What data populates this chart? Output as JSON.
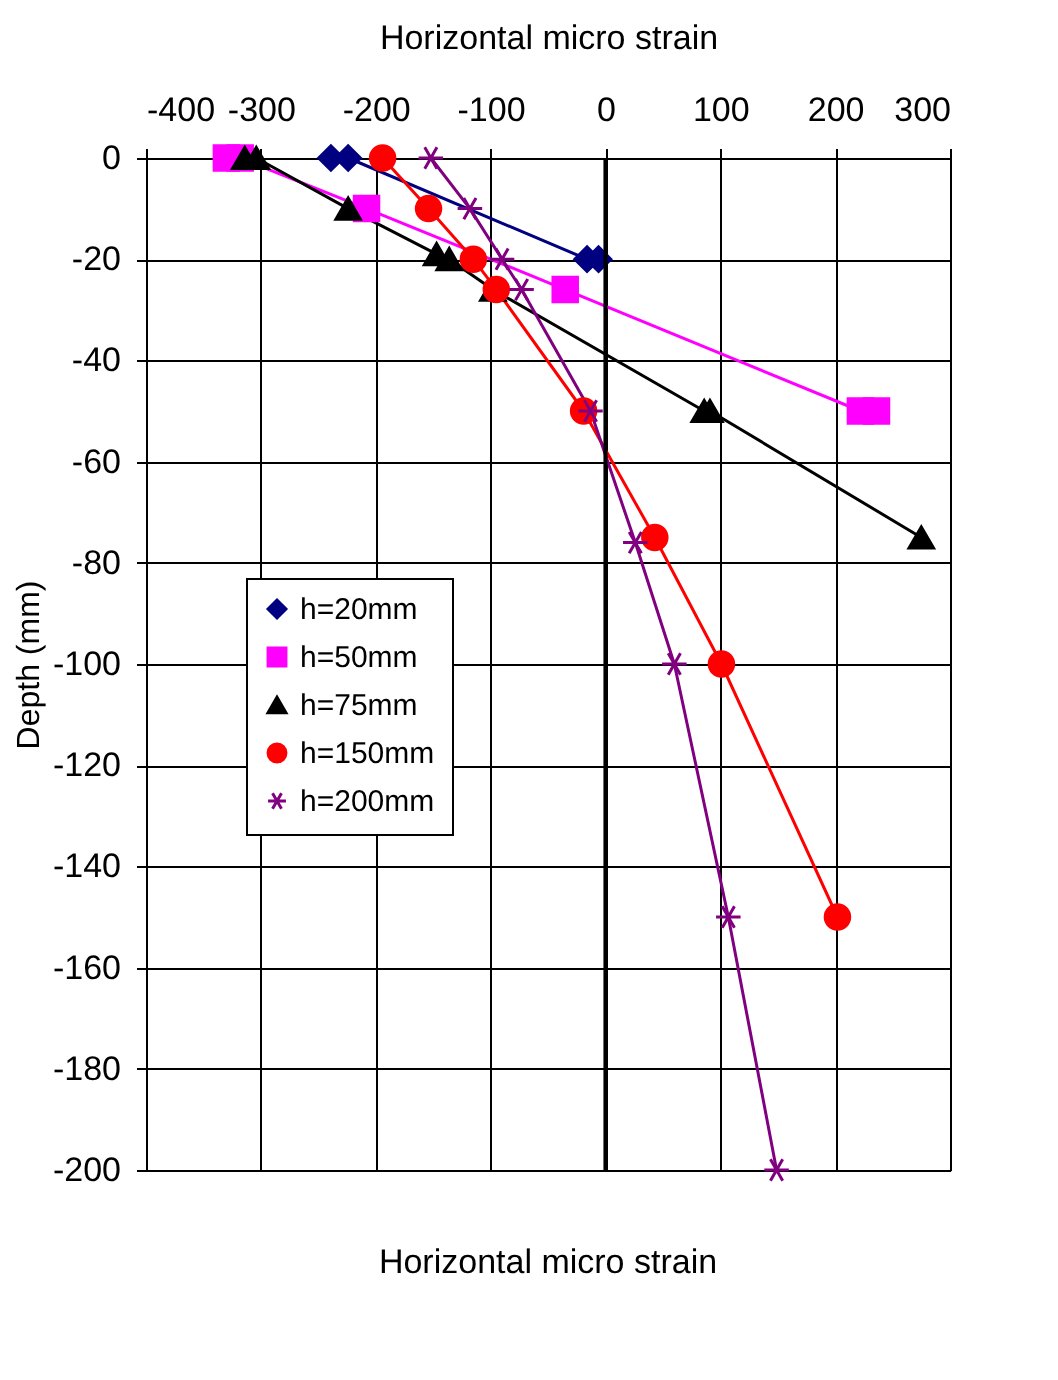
{
  "chart_data": {
    "type": "line",
    "title": "Horizontal micro strain",
    "xlabel": "Horizontal micro strain",
    "ylabel": "Depth (mm)",
    "xlim": [
      -400,
      300
    ],
    "xticks": [
      -400,
      -300,
      -200,
      -100,
      0,
      100,
      200,
      300
    ],
    "ylim": [
      -200,
      0
    ],
    "yticks": [
      0,
      -20,
      -40,
      -60,
      -80,
      -100,
      -120,
      -140,
      -160,
      -180,
      -200
    ],
    "grid": true,
    "legend": "bottom left",
    "ref_lines": [
      {
        "axis": "x",
        "value": 0,
        "color": "#000000"
      }
    ],
    "series": [
      {
        "name": "h=20mm",
        "color": "#000080",
        "marker": "diamond",
        "x": [
          -239,
          -224,
          -16,
          -6
        ],
        "values": [
          0,
          0,
          -20,
          -20
        ]
      },
      {
        "name": "h=50mm",
        "color": "#ff00ff",
        "marker": "square",
        "x": [
          -330,
          -318,
          -208,
          -35,
          222,
          236
        ],
        "values": [
          0,
          0,
          -10,
          -26,
          -50,
          -50
        ]
      },
      {
        "name": "h=75mm",
        "color": "#000000",
        "marker": "triangle",
        "x": [
          -314,
          -304,
          -224,
          -147,
          -136,
          -98,
          86,
          91,
          275
        ],
        "values": [
          0,
          0,
          -10,
          -19,
          -20,
          -26,
          -50,
          -50,
          -75
        ]
      },
      {
        "name": "h=150mm",
        "color": "#ff0000",
        "marker": "circle",
        "x": [
          -194,
          -154,
          -115,
          -95,
          -19,
          43,
          101,
          202
        ],
        "values": [
          0,
          -10,
          -20,
          -26,
          -50,
          -75,
          -100,
          -150
        ]
      },
      {
        "name": "h=200mm",
        "color": "#800080",
        "marker": "cross",
        "x": [
          -152,
          -118,
          -90,
          -73,
          -13,
          26,
          60,
          107,
          149
        ],
        "values": [
          0,
          -10,
          -20,
          -26,
          -50,
          -76,
          -100,
          -150,
          -200
        ]
      }
    ]
  }
}
